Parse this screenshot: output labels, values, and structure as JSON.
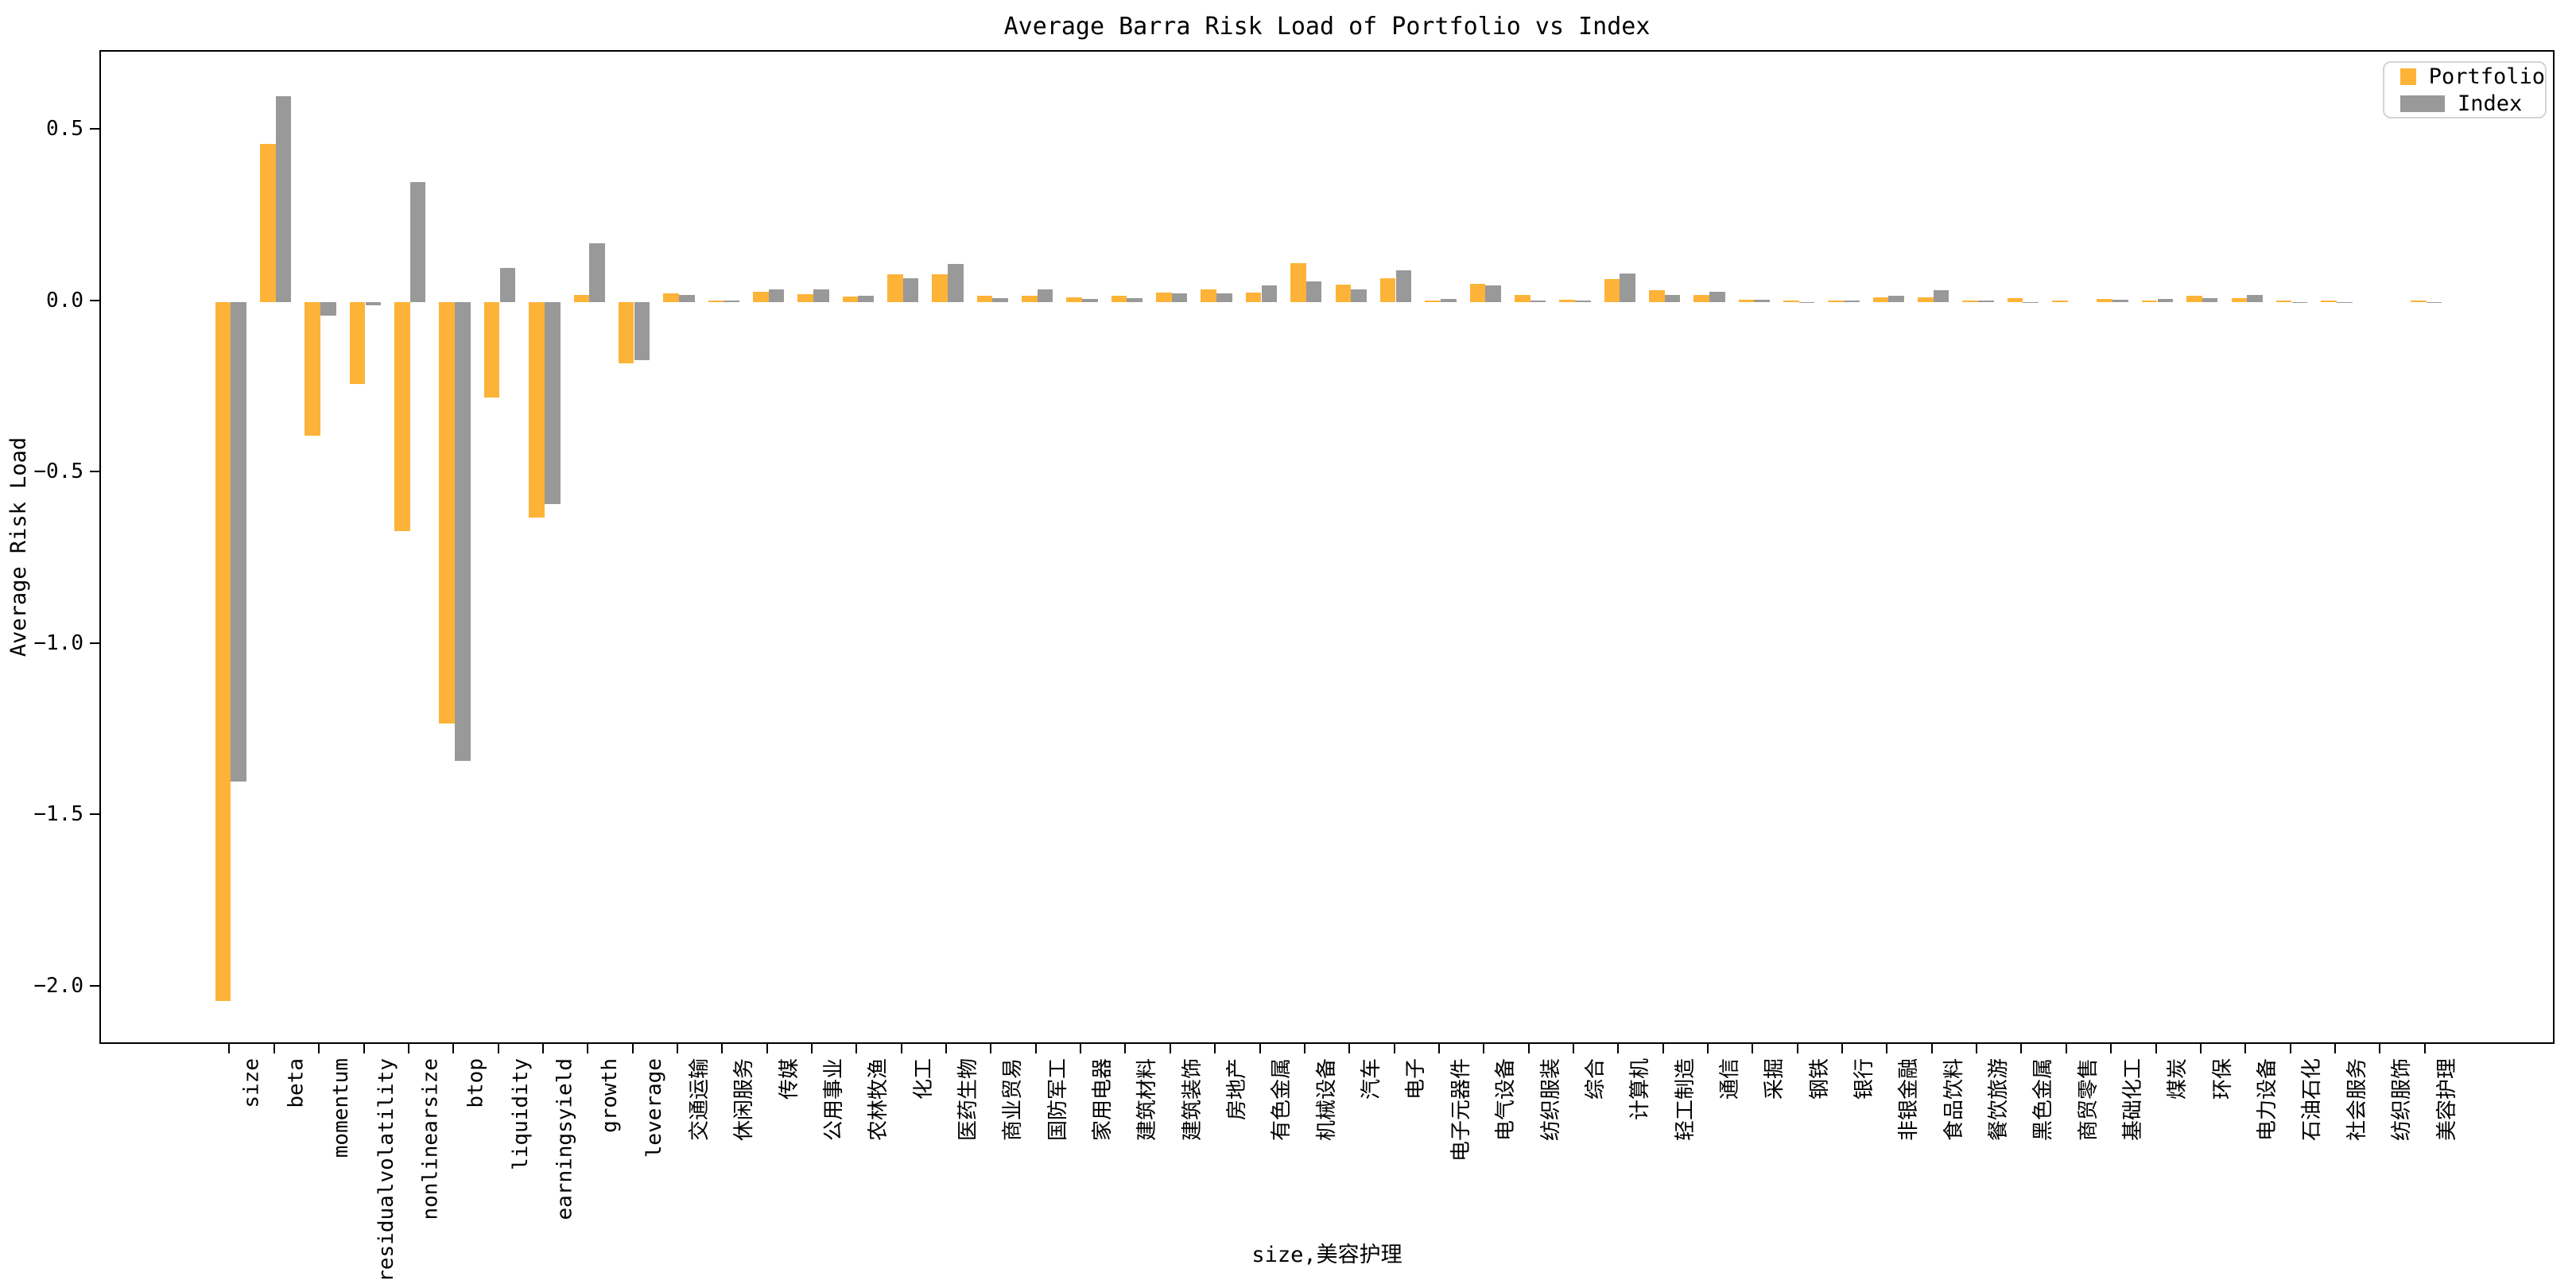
{
  "title": "Average Barra Risk Load of Portfolio vs Index",
  "legend": {
    "items": [
      {
        "label": "Portfolio",
        "color": "#FDB338"
      },
      {
        "label": "Index",
        "color": "#999999"
      }
    ]
  },
  "chart_data": {
    "type": "bar",
    "title": "Average Barra Risk Load of Portfolio vs Index",
    "xlabel": "size,美容护理",
    "ylabel": "Average Risk Load",
    "grid": false,
    "legend_position": "upper right",
    "bar_width": 0.35,
    "ylim": [
      -2.17,
      0.73
    ],
    "yticks": [
      0.5,
      0.0,
      -0.5,
      -1.0,
      -1.5,
      -2.0
    ],
    "categories": [
      "size",
      "beta",
      "momentum",
      "residualvolatility",
      "nonlinearsize",
      "btop",
      "liquidity",
      "earningsyield",
      "growth",
      "leverage",
      "交通运输",
      "休闲服务",
      "传媒",
      "公用事业",
      "农林牧渔",
      "化工",
      "医药生物",
      "商业贸易",
      "国防军工",
      "家用电器",
      "建筑材料",
      "建筑装饰",
      "房地产",
      "有色金属",
      "机械设备",
      "汽车",
      "电子",
      "电子元器件",
      "电气设备",
      "纺织服装",
      "综合",
      "计算机",
      "轻工制造",
      "通信",
      "采掘",
      "钢铁",
      "银行",
      "非银金融",
      "食品饮料",
      "餐饮旅游",
      "黑色金属",
      "商贸零售",
      "基础化工",
      "煤炭",
      "环保",
      "电力设备",
      "石油石化",
      "社会服务",
      "纺织服饰",
      "美容护理"
    ],
    "series": [
      {
        "name": "Portfolio",
        "color": "#FDB338",
        "values": [
          -2.04,
          0.46,
          -0.39,
          -0.24,
          -0.67,
          -1.23,
          -0.28,
          -0.63,
          0.02,
          -0.18,
          0.024,
          0.005,
          0.03,
          0.023,
          0.015,
          0.081,
          0.08,
          0.018,
          0.018,
          0.014,
          0.017,
          0.028,
          0.037,
          0.028,
          0.114,
          0.051,
          0.068,
          0.005,
          0.052,
          0.02,
          0.006,
          0.066,
          0.035,
          0.02,
          0.006,
          0.003,
          0.005,
          0.014,
          0.014,
          0.003,
          0.01,
          0.001,
          0.008,
          0.002,
          0.017,
          0.012,
          0.005,
          0.005,
          0.0,
          0.003
        ]
      },
      {
        "name": "Index",
        "color": "#999999",
        "values": [
          -1.4,
          0.6,
          -0.04,
          -0.01,
          0.35,
          -1.34,
          0.1,
          -0.59,
          0.17,
          -0.17,
          0.02,
          0.001,
          0.036,
          0.036,
          0.017,
          0.068,
          0.11,
          0.011,
          0.037,
          0.009,
          0.01,
          0.024,
          0.024,
          0.047,
          0.059,
          0.037,
          0.093,
          0.009,
          0.047,
          0.005,
          0.002,
          0.083,
          0.021,
          0.03,
          0.007,
          -0.001,
          0.002,
          0.017,
          0.034,
          0.001,
          -0.002,
          0.0,
          0.006,
          0.009,
          0.011,
          0.021,
          -0.003,
          -0.003,
          0.0,
          -0.002
        ]
      }
    ]
  }
}
